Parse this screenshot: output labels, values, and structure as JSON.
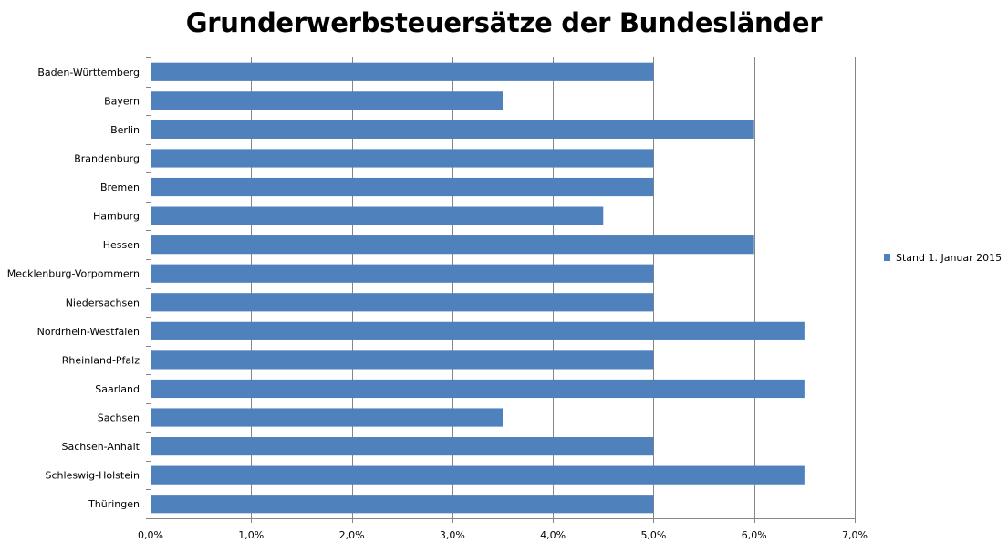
{
  "chart_data": {
    "type": "bar",
    "orientation": "horizontal",
    "title": "Grunderwerbsteuersätze der Bundesländer",
    "xlabel": "",
    "ylabel": "",
    "categories": [
      "Baden-Württemberg",
      "Bayern",
      "Berlin",
      "Brandenburg",
      "Bremen",
      "Hamburg",
      "Hessen",
      "Mecklenburg-Vorpommern",
      "Niedersachsen",
      "Nordrhein-Westfalen",
      "Rheinland-Pfalz",
      "Saarland",
      "Sachsen",
      "Sachsen-Anhalt",
      "Schleswig-Holstein",
      "Thüringen"
    ],
    "series": [
      {
        "name": "Stand 1. Januar 2015",
        "values": [
          5.0,
          3.5,
          6.0,
          5.0,
          5.0,
          4.5,
          6.0,
          5.0,
          5.0,
          6.5,
          5.0,
          6.5,
          3.5,
          5.0,
          6.5,
          5.0
        ]
      }
    ],
    "xlim": [
      0,
      7
    ],
    "xticks": [
      0,
      1,
      2,
      3,
      4,
      5,
      6,
      7
    ],
    "xtick_labels": [
      "0,0%",
      "1,0%",
      "2,0%",
      "3,0%",
      "4,0%",
      "5,0%",
      "6,0%",
      "7,0%"
    ],
    "grid": "vertical",
    "legend_position": "right",
    "colors": {
      "bar": "#4f81bd",
      "grid": "#868686",
      "axis": "#868686"
    }
  }
}
